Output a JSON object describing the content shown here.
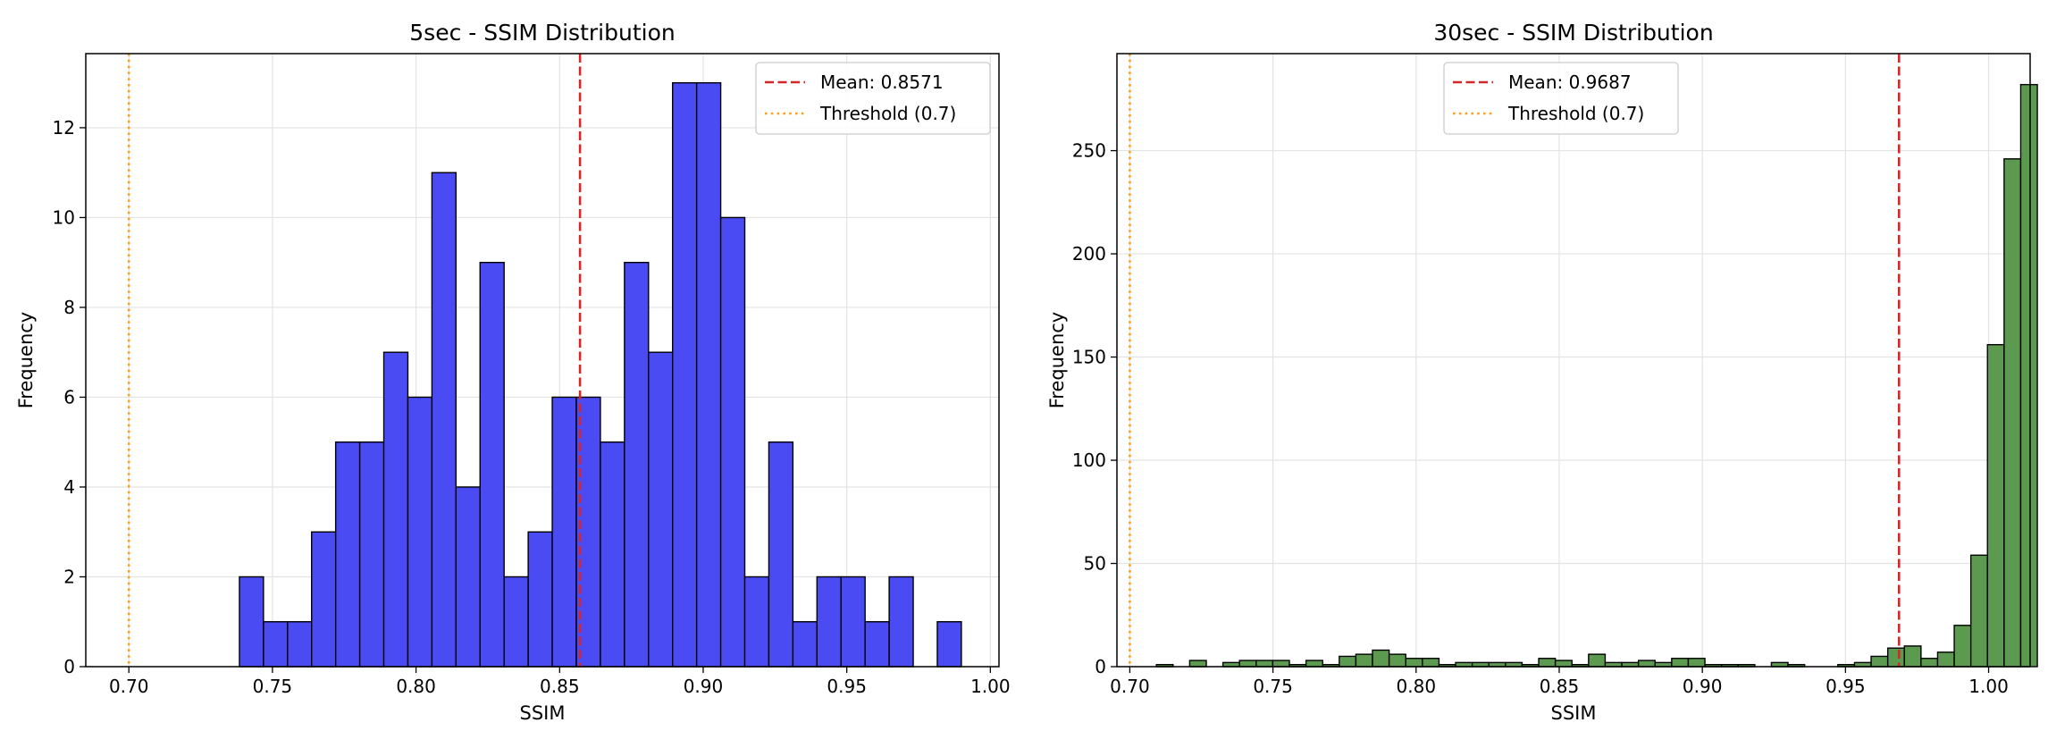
{
  "chart_data": [
    {
      "type": "bar",
      "title": "5sec - SSIM Distribution",
      "xlabel": "SSIM",
      "ylabel": "Frequency",
      "xlim": [
        0.685,
        1.003
      ],
      "ylim": [
        0,
        13.65
      ],
      "xticks": [
        0.7,
        0.75,
        0.8,
        0.85,
        0.9,
        0.95,
        1.0
      ],
      "xtick_labels": [
        "0.70",
        "0.75",
        "0.80",
        "0.85",
        "0.90",
        "0.95",
        "1.00"
      ],
      "yticks": [
        0,
        2,
        4,
        6,
        8,
        10,
        12
      ],
      "ytick_labels": [
        "0",
        "2",
        "4",
        "6",
        "8",
        "10",
        "12"
      ],
      "grid": true,
      "bar_color": "#4b4bf3",
      "edge_color": "#000000",
      "bin_start": 0.7385,
      "bin_width": 0.00838,
      "values": [
        2,
        1,
        1,
        3,
        5,
        5,
        7,
        6,
        11,
        4,
        9,
        2,
        3,
        6,
        6,
        5,
        9,
        7,
        13,
        13,
        10,
        2,
        5,
        1,
        2,
        2,
        1,
        2,
        0,
        1
      ],
      "mean": 0.8571,
      "threshold": 0.7,
      "mean_color": "#d62728",
      "threshold_color": "#ff9f1c",
      "legend": {
        "position": "top-right",
        "entries": [
          "Mean: 0.8571",
          "Threshold (0.7)"
        ]
      }
    },
    {
      "type": "bar",
      "title": "30sec - SSIM Distribution",
      "xlabel": "SSIM",
      "ylabel": "Frequency",
      "xlim": [
        0.6955,
        1.0145
      ],
      "ylim": [
        0,
        297
      ],
      "xticks": [
        0.7,
        0.75,
        0.8,
        0.85,
        0.9,
        0.95,
        1.0
      ],
      "xtick_labels": [
        "0.70",
        "0.75",
        "0.80",
        "0.85",
        "0.90",
        "0.95",
        "1.00"
      ],
      "yticks": [
        0,
        50,
        100,
        150,
        200,
        250
      ],
      "ytick_labels": [
        "0",
        "50",
        "100",
        "150",
        "200",
        "250"
      ],
      "grid": true,
      "bar_color": "#5c9b4f",
      "edge_color": "#000000",
      "bin_start": 0.7093,
      "bin_width": 0.005806,
      "values": [
        1,
        0,
        3,
        0,
        2,
        3,
        3,
        3,
        1,
        3,
        1,
        5,
        6,
        8,
        6,
        4,
        4,
        1,
        2,
        2,
        2,
        2,
        1,
        4,
        3,
        1,
        6,
        2,
        2,
        3,
        2,
        4,
        4,
        1,
        1,
        1,
        0,
        2,
        1,
        0,
        0,
        1,
        2,
        5,
        9,
        10,
        4,
        7,
        20,
        54,
        156,
        246,
        282
      ],
      "mean": 0.9687,
      "threshold": 0.7,
      "mean_color": "#d62728",
      "threshold_color": "#ff9f1c",
      "legend": {
        "position": "top-center",
        "entries": [
          "Mean: 0.9687",
          "Threshold (0.7)"
        ]
      }
    }
  ]
}
